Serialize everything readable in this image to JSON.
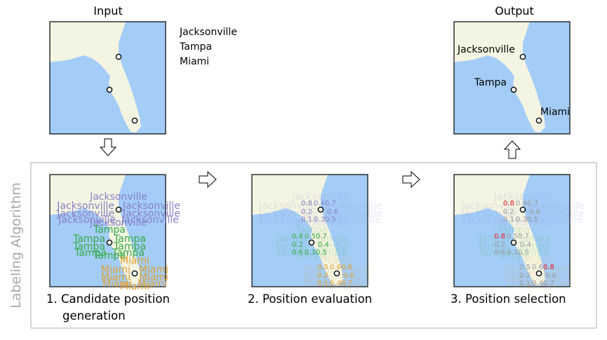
{
  "top": {
    "input_title": "Input",
    "output_title": "Output",
    "city_names": [
      "Jacksonville",
      "Tampa",
      "Miami"
    ]
  },
  "section_label": "Labeling Algorithm",
  "steps": [
    {
      "line1": "1. Candidate position",
      "line2": "generation"
    },
    {
      "line1": "2. Position  evaluation",
      "line2": ""
    },
    {
      "line1": "3. Position selection",
      "line2": ""
    }
  ],
  "cities": [
    {
      "name": "Jacksonville",
      "color": "#8a7fc6",
      "scores": [
        "0.8",
        "0.4",
        "0.7",
        "0.2",
        "0.6",
        "0.1",
        "0.3",
        "0.5"
      ],
      "selected_index": 0
    },
    {
      "name": "Tampa",
      "color": "#33aa44",
      "scores": [
        "0.8",
        "0.5",
        "0.7",
        "0.2",
        "0.4",
        "0.6",
        "0.3",
        "0.5"
      ],
      "selected_index": 0
    },
    {
      "name": "Miami",
      "color": "#e0a030",
      "scores": [
        "0.5",
        "0.6",
        "0.8",
        "0.2",
        "0.6",
        "0.1",
        "0.4",
        "0.7"
      ],
      "selected_index": 2
    }
  ],
  "colors": {
    "water": "#a3cdf7",
    "land": "#f4f4e2",
    "selected_score": "#e8101a",
    "unselected_score": "#9a9a9a",
    "frame": "#bbbbbb",
    "section_label": "#a8a8a8"
  }
}
